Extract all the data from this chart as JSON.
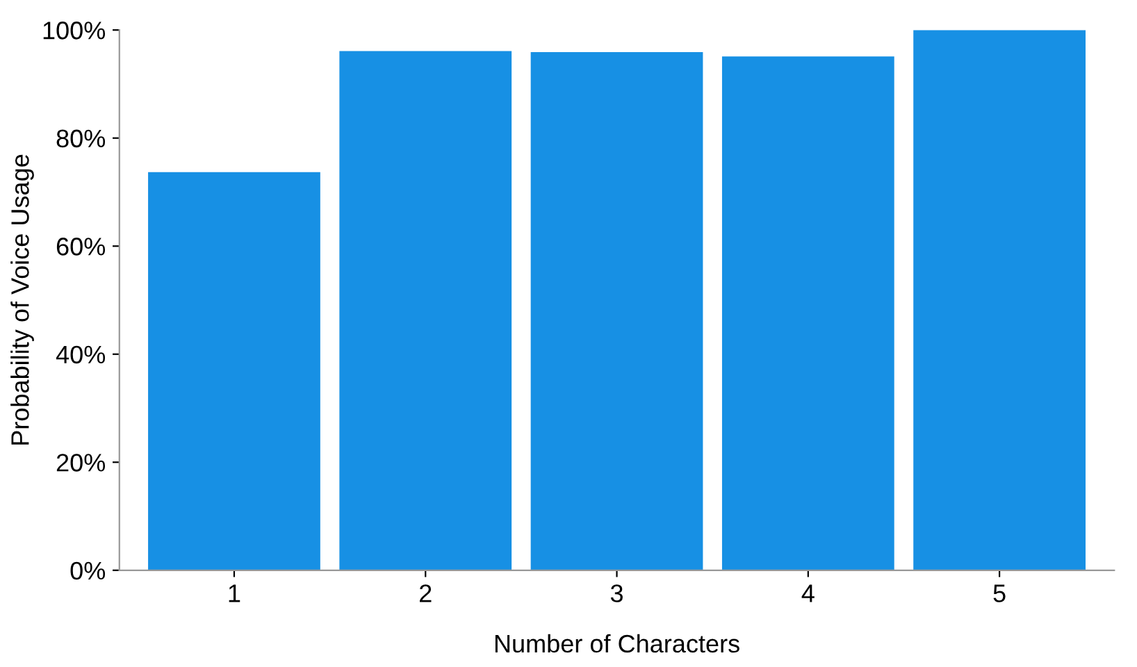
{
  "chart_data": {
    "type": "bar",
    "xlabel": "Number of Characters",
    "ylabel": "Probability of Voice Usage",
    "categories": [
      "1",
      "2",
      "3",
      "4",
      "5"
    ],
    "values": [
      73.7,
      96.1,
      95.9,
      95.1,
      100
    ],
    "color": "#1790e4",
    "ylim": [
      0,
      100
    ],
    "yticks": [
      {
        "value": 0,
        "label": "0%"
      },
      {
        "value": 20,
        "label": "20%"
      },
      {
        "value": 40,
        "label": "40%"
      },
      {
        "value": 60,
        "label": "60%"
      },
      {
        "value": 80,
        "label": "80%"
      },
      {
        "value": 100,
        "label": "100%"
      }
    ],
    "grid": false
  }
}
